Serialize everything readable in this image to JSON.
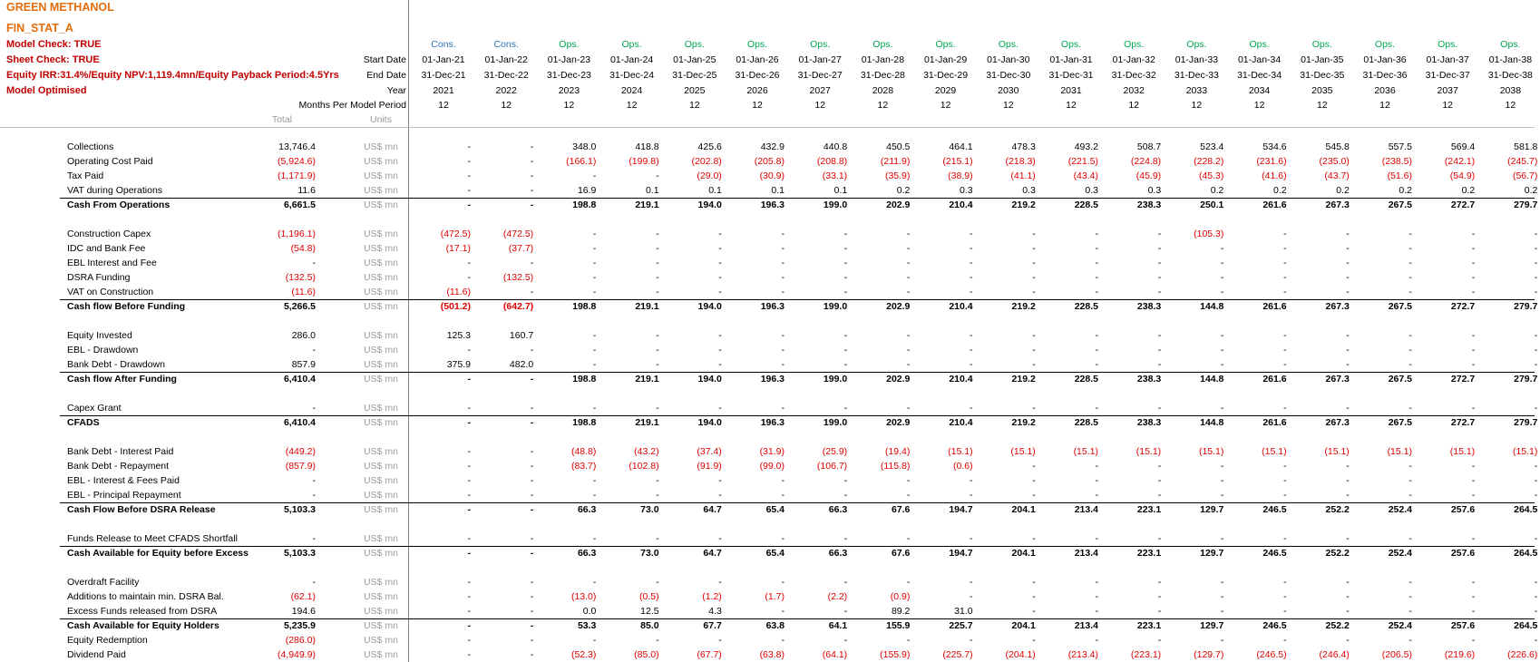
{
  "header": {
    "title": "GREEN METHANOL",
    "sheet": "FIN_STAT_A",
    "model_check": "Model Check: TRUE",
    "sheet_check": "Sheet Check: TRUE",
    "equity_summary": "Equity IRR:31.4%/Equity NPV:1,119.4mn/Equity Payback Period:4.5Yrs",
    "optimised": "Model Optimised"
  },
  "row_labels": {
    "start_date": "Start Date",
    "end_date": "End Date",
    "year": "Year",
    "months": "Months Per Model Period",
    "total": "Total",
    "units": "Units"
  },
  "periods": [
    {
      "phase": "Cons.",
      "start": "01-Jan-21",
      "end": "31-Dec-21",
      "year": "2021",
      "months": "12"
    },
    {
      "phase": "Cons.",
      "start": "01-Jan-22",
      "end": "31-Dec-22",
      "year": "2022",
      "months": "12"
    },
    {
      "phase": "Ops.",
      "start": "01-Jan-23",
      "end": "31-Dec-23",
      "year": "2023",
      "months": "12"
    },
    {
      "phase": "Ops.",
      "start": "01-Jan-24",
      "end": "31-Dec-24",
      "year": "2024",
      "months": "12"
    },
    {
      "phase": "Ops.",
      "start": "01-Jan-25",
      "end": "31-Dec-25",
      "year": "2025",
      "months": "12"
    },
    {
      "phase": "Ops.",
      "start": "01-Jan-26",
      "end": "31-Dec-26",
      "year": "2026",
      "months": "12"
    },
    {
      "phase": "Ops.",
      "start": "01-Jan-27",
      "end": "31-Dec-27",
      "year": "2027",
      "months": "12"
    },
    {
      "phase": "Ops.",
      "start": "01-Jan-28",
      "end": "31-Dec-28",
      "year": "2028",
      "months": "12"
    },
    {
      "phase": "Ops.",
      "start": "01-Jan-29",
      "end": "31-Dec-29",
      "year": "2029",
      "months": "12"
    },
    {
      "phase": "Ops.",
      "start": "01-Jan-30",
      "end": "31-Dec-30",
      "year": "2030",
      "months": "12"
    },
    {
      "phase": "Ops.",
      "start": "01-Jan-31",
      "end": "31-Dec-31",
      "year": "2031",
      "months": "12"
    },
    {
      "phase": "Ops.",
      "start": "01-Jan-32",
      "end": "31-Dec-32",
      "year": "2032",
      "months": "12"
    },
    {
      "phase": "Ops.",
      "start": "01-Jan-33",
      "end": "31-Dec-33",
      "year": "2033",
      "months": "12"
    },
    {
      "phase": "Ops.",
      "start": "01-Jan-34",
      "end": "31-Dec-34",
      "year": "2034",
      "months": "12"
    },
    {
      "phase": "Ops.",
      "start": "01-Jan-35",
      "end": "31-Dec-35",
      "year": "2035",
      "months": "12"
    },
    {
      "phase": "Ops.",
      "start": "01-Jan-36",
      "end": "31-Dec-36",
      "year": "2036",
      "months": "12"
    },
    {
      "phase": "Ops.",
      "start": "01-Jan-37",
      "end": "31-Dec-37",
      "year": "2037",
      "months": "12"
    },
    {
      "phase": "Ops.",
      "start": "01-Jan-38",
      "end": "31-Dec-38",
      "year": "2038",
      "months": "12"
    }
  ],
  "colors": {
    "cons": "#2e75b6",
    "ops": "#00a651",
    "negative": "#e00000",
    "title": "#e46c0a",
    "check": "#c00000",
    "units": "#9b9b9b"
  },
  "rows": [
    {
      "label": "Collections",
      "total": "13,746.4",
      "unit": "US$ mn",
      "vals": [
        "-",
        "-",
        "348.0",
        "418.8",
        "425.6",
        "432.9",
        "440.8",
        "450.5",
        "464.1",
        "478.3",
        "493.2",
        "508.7",
        "523.4",
        "534.6",
        "545.8",
        "557.5",
        "569.4",
        "581.8"
      ]
    },
    {
      "label": "Operating Cost Paid",
      "total": "(5,924.6)",
      "unit": "US$ mn",
      "vals": [
        "-",
        "-",
        "(166.1)",
        "(199.8)",
        "(202.8)",
        "(205.8)",
        "(208.8)",
        "(211.9)",
        "(215.1)",
        "(218.3)",
        "(221.5)",
        "(224.8)",
        "(228.2)",
        "(231.6)",
        "(235.0)",
        "(238.5)",
        "(242.1)",
        "(245.7)"
      ]
    },
    {
      "label": "Tax Paid",
      "total": "(1,171.9)",
      "unit": "US$ mn",
      "vals": [
        "-",
        "-",
        "-",
        "-",
        "(29.0)",
        "(30.9)",
        "(33.1)",
        "(35.9)",
        "(38.9)",
        "(41.1)",
        "(43.4)",
        "(45.9)",
        "(45.3)",
        "(41.6)",
        "(43.7)",
        "(51.6)",
        "(54.9)",
        "(56.7)"
      ]
    },
    {
      "label": "VAT during Operations",
      "total": "11.6",
      "unit": "US$ mn",
      "vals": [
        "-",
        "-",
        "16.9",
        "0.1",
        "0.1",
        "0.1",
        "0.1",
        "0.2",
        "0.3",
        "0.3",
        "0.3",
        "0.3",
        "0.2",
        "0.2",
        "0.2",
        "0.2",
        "0.2",
        "0.2"
      ]
    },
    {
      "label": "Cash From Operations",
      "total": "6,661.5",
      "unit": "US$ mn",
      "bold": true,
      "vals": [
        "-",
        "-",
        "198.8",
        "219.1",
        "194.0",
        "196.3",
        "199.0",
        "202.9",
        "210.4",
        "219.2",
        "228.5",
        "238.3",
        "250.1",
        "261.6",
        "267.3",
        "267.5",
        "272.7",
        "279.7"
      ]
    },
    {
      "label": "Construction Capex",
      "total": "(1,196.1)",
      "unit": "US$ mn",
      "vals": [
        "(472.5)",
        "(472.5)",
        "-",
        "-",
        "-",
        "-",
        "-",
        "-",
        "-",
        "-",
        "-",
        "-",
        "(105.3)",
        "-",
        "-",
        "-",
        "-",
        "-"
      ]
    },
    {
      "label": "IDC and Bank Fee",
      "total": "(54.8)",
      "unit": "US$ mn",
      "vals": [
        "(17.1)",
        "(37.7)",
        "-",
        "-",
        "-",
        "-",
        "-",
        "-",
        "-",
        "-",
        "-",
        "-",
        "-",
        "-",
        "-",
        "-",
        "-",
        "-"
      ]
    },
    {
      "label": "EBL Interest and Fee",
      "total": "-",
      "unit": "US$ mn",
      "vals": [
        "-",
        "-",
        "-",
        "-",
        "-",
        "-",
        "-",
        "-",
        "-",
        "-",
        "-",
        "-",
        "-",
        "-",
        "-",
        "-",
        "-",
        "-"
      ]
    },
    {
      "label": "DSRA Funding",
      "total": "(132.5)",
      "unit": "US$ mn",
      "vals": [
        "-",
        "(132.5)",
        "-",
        "-",
        "-",
        "-",
        "-",
        "-",
        "-",
        "-",
        "-",
        "-",
        "-",
        "-",
        "-",
        "-",
        "-",
        "-"
      ]
    },
    {
      "label": "VAT on Construction",
      "total": "(11.6)",
      "unit": "US$ mn",
      "vals": [
        "(11.6)",
        "-",
        "-",
        "-",
        "-",
        "-",
        "-",
        "-",
        "-",
        "-",
        "-",
        "-",
        "-",
        "-",
        "-",
        "-",
        "-",
        "-"
      ]
    },
    {
      "label": "Cash flow Before Funding",
      "total": "5,266.5",
      "unit": "US$ mn",
      "bold": true,
      "vals": [
        "(501.2)",
        "(642.7)",
        "198.8",
        "219.1",
        "194.0",
        "196.3",
        "199.0",
        "202.9",
        "210.4",
        "219.2",
        "228.5",
        "238.3",
        "144.8",
        "261.6",
        "267.3",
        "267.5",
        "272.7",
        "279.7"
      ]
    },
    {
      "label": "Equity Invested",
      "total": "286.0",
      "unit": "US$ mn",
      "vals": [
        "125.3",
        "160.7",
        "-",
        "-",
        "-",
        "-",
        "-",
        "-",
        "-",
        "-",
        "-",
        "-",
        "-",
        "-",
        "-",
        "-",
        "-",
        "-"
      ]
    },
    {
      "label": "EBL - Drawdown",
      "total": "-",
      "unit": "US$ mn",
      "vals": [
        "-",
        "-",
        "-",
        "-",
        "-",
        "-",
        "-",
        "-",
        "-",
        "-",
        "-",
        "-",
        "-",
        "-",
        "-",
        "-",
        "-",
        "-"
      ]
    },
    {
      "label": "Bank Debt - Drawdown",
      "total": "857.9",
      "unit": "US$ mn",
      "vals": [
        "375.9",
        "482.0",
        "-",
        "-",
        "-",
        "-",
        "-",
        "-",
        "-",
        "-",
        "-",
        "-",
        "-",
        "-",
        "-",
        "-",
        "-",
        "-"
      ]
    },
    {
      "label": "Cash flow After Funding",
      "total": "6,410.4",
      "unit": "US$ mn",
      "bold": true,
      "vals": [
        "-",
        "-",
        "198.8",
        "219.1",
        "194.0",
        "196.3",
        "199.0",
        "202.9",
        "210.4",
        "219.2",
        "228.5",
        "238.3",
        "144.8",
        "261.6",
        "267.3",
        "267.5",
        "272.7",
        "279.7"
      ]
    },
    {
      "label": "Capex Grant",
      "total": "-",
      "unit": "US$ mn",
      "vals": [
        "-",
        "-",
        "-",
        "-",
        "-",
        "-",
        "-",
        "-",
        "-",
        "-",
        "-",
        "-",
        "-",
        "-",
        "-",
        "-",
        "-",
        "-"
      ]
    },
    {
      "label": "CFADS",
      "total": "6,410.4",
      "unit": "US$ mn",
      "bold": true,
      "vals": [
        "-",
        "-",
        "198.8",
        "219.1",
        "194.0",
        "196.3",
        "199.0",
        "202.9",
        "210.4",
        "219.2",
        "228.5",
        "238.3",
        "144.8",
        "261.6",
        "267.3",
        "267.5",
        "272.7",
        "279.7"
      ]
    },
    {
      "label": "Bank Debt - Interest Paid",
      "total": "(449.2)",
      "unit": "US$ mn",
      "vals": [
        "-",
        "-",
        "(48.8)",
        "(43.2)",
        "(37.4)",
        "(31.9)",
        "(25.9)",
        "(19.4)",
        "(15.1)",
        "(15.1)",
        "(15.1)",
        "(15.1)",
        "(15.1)",
        "(15.1)",
        "(15.1)",
        "(15.1)",
        "(15.1)",
        "(15.1)"
      ]
    },
    {
      "label": "Bank Debt - Repayment",
      "total": "(857.9)",
      "unit": "US$ mn",
      "vals": [
        "-",
        "-",
        "(83.7)",
        "(102.8)",
        "(91.9)",
        "(99.0)",
        "(106.7)",
        "(115.8)",
        "(0.6)",
        "-",
        "-",
        "-",
        "-",
        "-",
        "-",
        "-",
        "-",
        "-"
      ]
    },
    {
      "label": "EBL - Interest & Fees Paid",
      "total": "-",
      "unit": "US$ mn",
      "vals": [
        "-",
        "-",
        "-",
        "-",
        "-",
        "-",
        "-",
        "-",
        "-",
        "-",
        "-",
        "-",
        "-",
        "-",
        "-",
        "-",
        "-",
        "-"
      ]
    },
    {
      "label": "EBL - Principal Repayment",
      "total": "-",
      "unit": "US$ mn",
      "vals": [
        "-",
        "-",
        "-",
        "-",
        "-",
        "-",
        "-",
        "-",
        "-",
        "-",
        "-",
        "-",
        "-",
        "-",
        "-",
        "-",
        "-",
        "-"
      ]
    },
    {
      "label": "Cash Flow Before DSRA Release",
      "total": "5,103.3",
      "unit": "US$ mn",
      "bold": true,
      "vals": [
        "-",
        "-",
        "66.3",
        "73.0",
        "64.7",
        "65.4",
        "66.3",
        "67.6",
        "194.7",
        "204.1",
        "213.4",
        "223.1",
        "129.7",
        "246.5",
        "252.2",
        "252.4",
        "257.6",
        "264.5"
      ]
    },
    {
      "label": "Funds Release to Meet CFADS Shortfall",
      "total": "-",
      "unit": "US$ mn",
      "vals": [
        "-",
        "-",
        "-",
        "-",
        "-",
        "-",
        "-",
        "-",
        "-",
        "-",
        "-",
        "-",
        "-",
        "-",
        "-",
        "-",
        "-",
        "-"
      ]
    },
    {
      "label": "Cash Available for Equity before Excess",
      "total": "5,103.3",
      "unit": "US$ mn",
      "bold": true,
      "vals": [
        "-",
        "-",
        "66.3",
        "73.0",
        "64.7",
        "65.4",
        "66.3",
        "67.6",
        "194.7",
        "204.1",
        "213.4",
        "223.1",
        "129.7",
        "246.5",
        "252.2",
        "252.4",
        "257.6",
        "264.5"
      ]
    },
    {
      "label": "Overdraft Facility",
      "total": "-",
      "unit": "US$ mn",
      "vals": [
        "-",
        "-",
        "-",
        "-",
        "-",
        "-",
        "-",
        "-",
        "-",
        "-",
        "-",
        "-",
        "-",
        "-",
        "-",
        "-",
        "-",
        "-"
      ]
    },
    {
      "label": "Additions to maintain min. DSRA Bal.",
      "total": "(62.1)",
      "unit": "US$ mn",
      "vals": [
        "-",
        "-",
        "(13.0)",
        "(0.5)",
        "(1.2)",
        "(1.7)",
        "(2.2)",
        "(0.9)",
        "-",
        "-",
        "-",
        "-",
        "-",
        "-",
        "-",
        "-",
        "-",
        "-"
      ]
    },
    {
      "label": "Excess Funds released from DSRA",
      "total": "194.6",
      "unit": "US$ mn",
      "vals": [
        "-",
        "-",
        "0.0",
        "12.5",
        "4.3",
        "-",
        "-",
        "89.2",
        "31.0",
        "-",
        "-",
        "-",
        "-",
        "-",
        "-",
        "-",
        "-",
        "-"
      ]
    },
    {
      "label": "Cash Available for Equity Holders",
      "total": "5,235.9",
      "unit": "US$ mn",
      "bold": true,
      "vals": [
        "-",
        "-",
        "53.3",
        "85.0",
        "67.7",
        "63.8",
        "64.1",
        "155.9",
        "225.7",
        "204.1",
        "213.4",
        "223.1",
        "129.7",
        "246.5",
        "252.2",
        "252.4",
        "257.6",
        "264.5"
      ]
    },
    {
      "label": "Equity Redemption",
      "total": "(286.0)",
      "unit": "US$ mn",
      "vals": [
        "-",
        "-",
        "-",
        "-",
        "-",
        "-",
        "-",
        "-",
        "-",
        "-",
        "-",
        "-",
        "-",
        "-",
        "-",
        "-",
        "-",
        "-"
      ]
    },
    {
      "label": "Dividend Paid",
      "total": "(4,949.9)",
      "unit": "US$ mn",
      "vals": [
        "-",
        "-",
        "(52.3)",
        "(85.0)",
        "(67.7)",
        "(63.8)",
        "(64.1)",
        "(155.9)",
        "(225.7)",
        "(204.1)",
        "(213.4)",
        "(223.1)",
        "(129.7)",
        "(246.5)",
        "(246.4)",
        "(206.5)",
        "(219.6)",
        "(226.6)"
      ]
    }
  ]
}
